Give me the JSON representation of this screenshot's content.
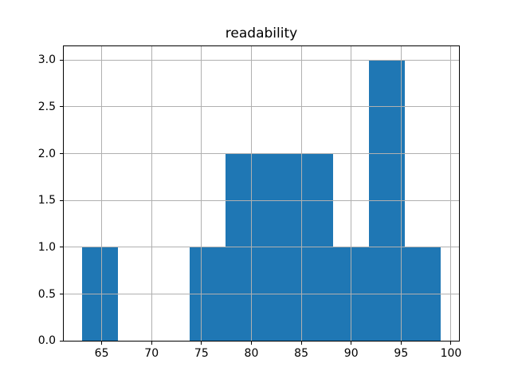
{
  "figure": {
    "background": "#ffffff"
  },
  "chart_data": {
    "type": "bar",
    "subtype": "histogram",
    "title": "readability",
    "xlabel": "",
    "ylabel": "",
    "bin_edges": [
      63.0,
      66.6,
      70.2,
      73.8,
      77.4,
      81.0,
      84.6,
      88.2,
      91.8,
      95.4,
      99.0
    ],
    "counts": [
      1,
      0,
      0,
      1,
      2,
      2,
      2,
      1,
      3,
      1
    ],
    "x_ticks": [
      65,
      70,
      75,
      80,
      85,
      90,
      95,
      100
    ],
    "x_tick_labels": [
      "65",
      "70",
      "75",
      "80",
      "85",
      "90",
      "95",
      "100"
    ],
    "y_ticks": [
      0.0,
      0.5,
      1.0,
      1.5,
      2.0,
      2.5,
      3.0
    ],
    "y_tick_labels": [
      "0.0",
      "0.5",
      "1.0",
      "1.5",
      "2.0",
      "2.5",
      "3.0"
    ],
    "xlim": [
      61.2,
      100.8
    ],
    "ylim": [
      0,
      3.15
    ],
    "grid": true,
    "grid_above_bars": true,
    "legend": false,
    "bar_color": "#1f77b4",
    "grid_color": "#b0b0b0",
    "spine_color": "#000000",
    "text_color": "#000000"
  }
}
